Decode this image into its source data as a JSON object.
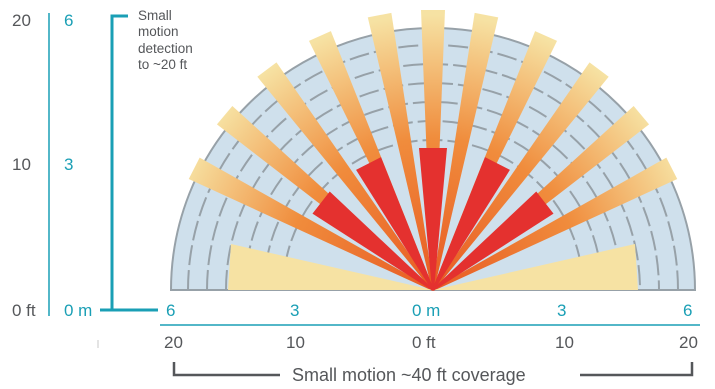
{
  "colors": {
    "teal": "#1a9fb5",
    "text_gray": "#55575a",
    "dome_fill": "#cfe0ec",
    "dome_ring": "#97a1a8",
    "zone_orange": "#ec6a2a",
    "zone_pale": "#f5e3a5",
    "zone_red": "#e4312f"
  },
  "left_scale": {
    "ft_labels": [
      "20",
      "10",
      "0 ft"
    ],
    "m_labels": [
      "6",
      "3",
      "0 m"
    ]
  },
  "note": {
    "line1": "Small",
    "line2": "motion",
    "line3": "detection",
    "line4": "to ~20 ft"
  },
  "bottom_scale": {
    "m_labels": [
      "6",
      "3",
      "0 m",
      "3",
      "6"
    ],
    "ft_labels": [
      "20",
      "10",
      "0 ft",
      "10",
      "20"
    ]
  },
  "coverage_title": "Small motion ~40 ft coverage"
}
